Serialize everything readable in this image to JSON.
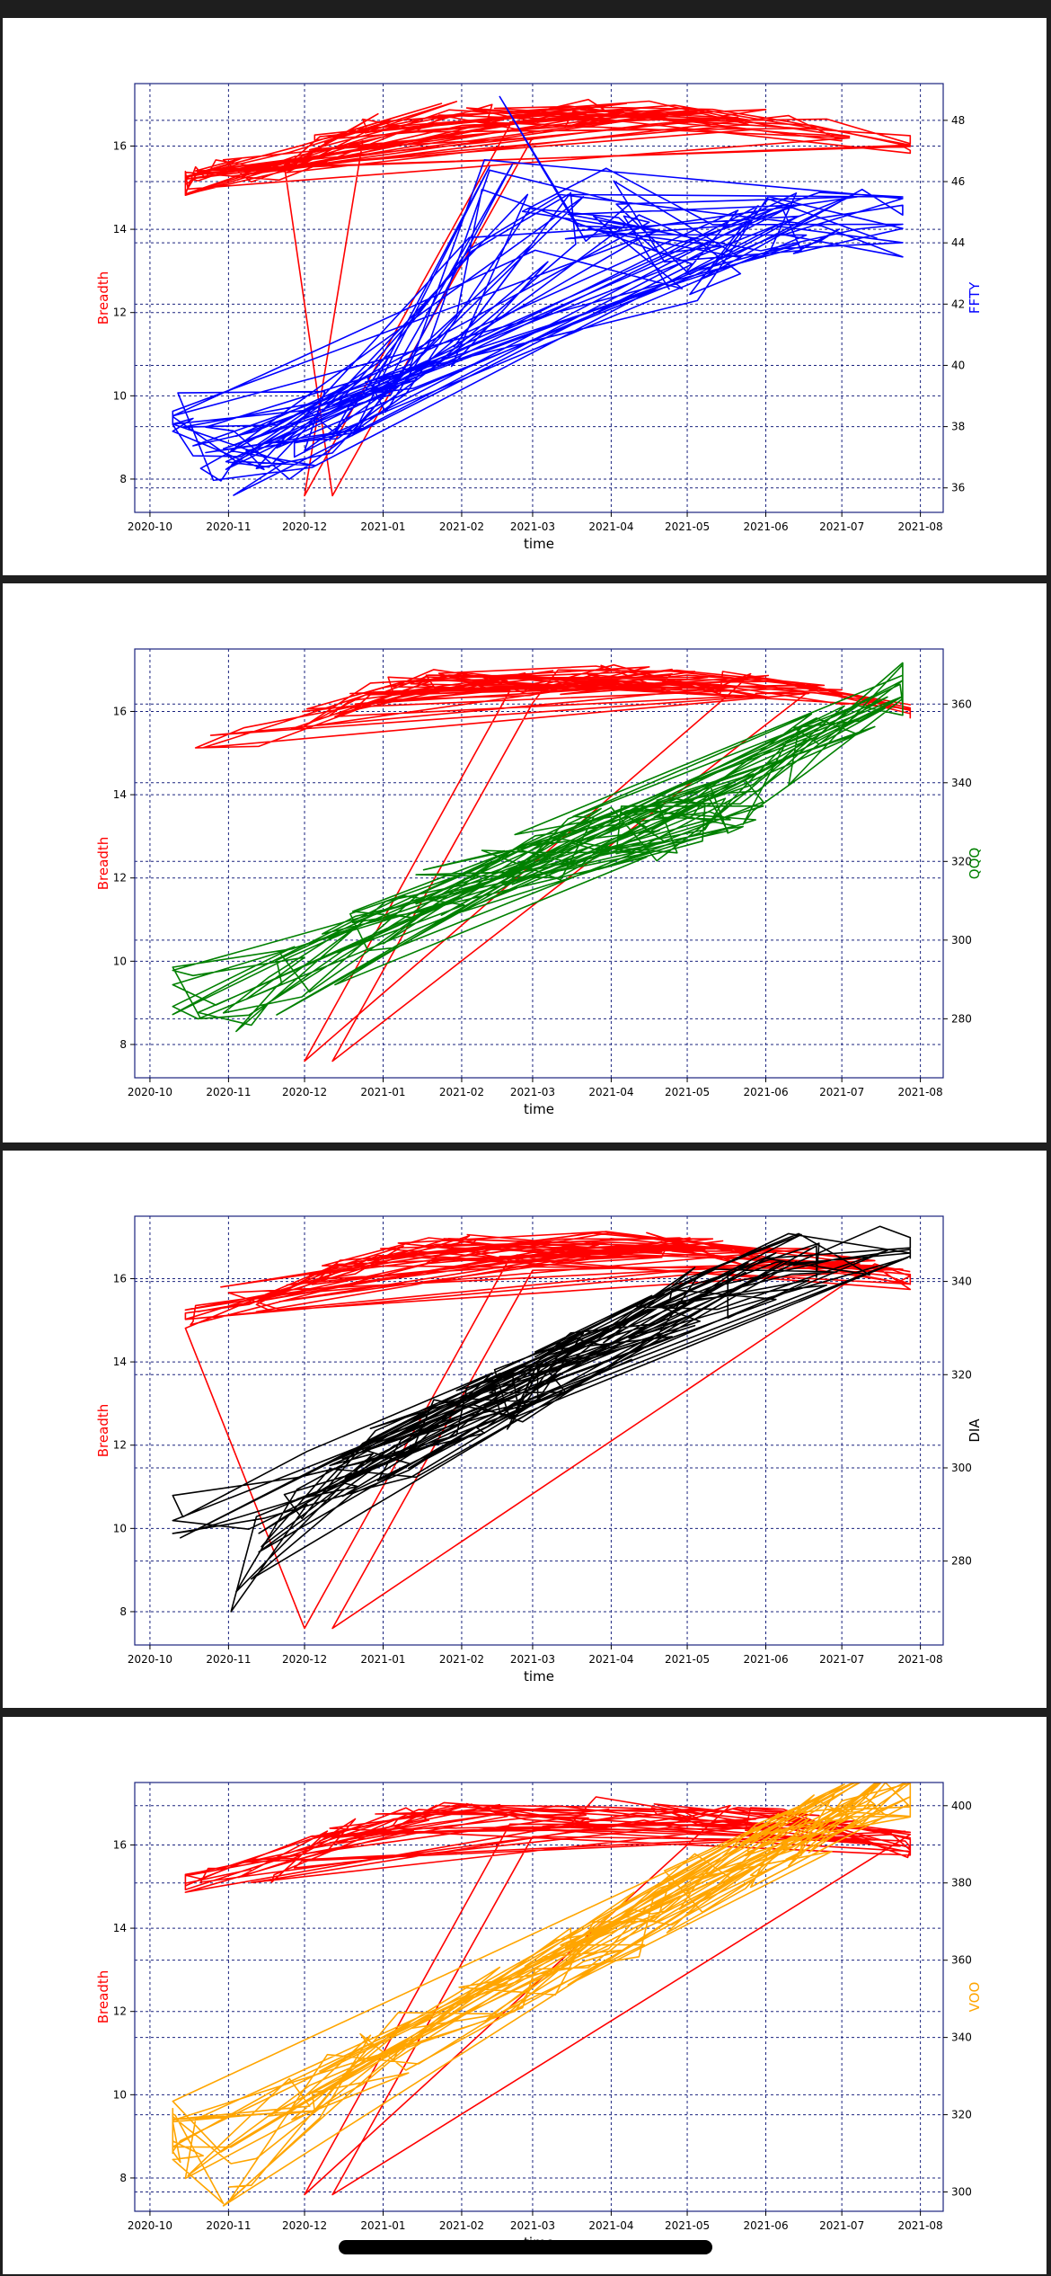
{
  "charts": [
    {
      "type": "line",
      "xlabel": "time",
      "left_axis": {
        "label": "Breadth",
        "color": "#ff0000",
        "ticks": [
          8,
          10,
          12,
          14,
          16
        ],
        "ylim": [
          7.2,
          17.5
        ]
      },
      "right_axis": {
        "label": "FFTY",
        "color": "#0000ff",
        "ticks": [
          36,
          38,
          40,
          42,
          44,
          46,
          48
        ],
        "ylim": [
          35.2,
          49.2
        ]
      },
      "x_ticks": [
        "2020-10",
        "2020-11",
        "2020-12",
        "2021-01",
        "2021-02",
        "2021-03",
        "2021-04",
        "2021-05",
        "2021-06",
        "2021-07",
        "2021-08"
      ]
    },
    {
      "type": "line",
      "xlabel": "time",
      "left_axis": {
        "label": "Breadth",
        "color": "#ff0000",
        "ticks": [
          8,
          10,
          12,
          14,
          16
        ],
        "ylim": [
          7.2,
          17.5
        ]
      },
      "right_axis": {
        "label": "QQQ",
        "color": "#008000",
        "ticks": [
          280,
          300,
          320,
          340,
          360
        ],
        "ylim": [
          265,
          374
        ]
      },
      "x_ticks": [
        "2020-10",
        "2020-11",
        "2020-12",
        "2021-01",
        "2021-02",
        "2021-03",
        "2021-04",
        "2021-05",
        "2021-06",
        "2021-07",
        "2021-08"
      ]
    },
    {
      "type": "line",
      "xlabel": "time",
      "left_axis": {
        "label": "Breadth",
        "color": "#ff0000",
        "ticks": [
          8,
          10,
          12,
          14,
          16
        ],
        "ylim": [
          7.2,
          17.5
        ]
      },
      "right_axis": {
        "label": "DIA",
        "color": "#000000",
        "ticks": [
          280,
          300,
          320,
          340
        ],
        "ylim": [
          262,
          354
        ]
      },
      "x_ticks": [
        "2020-10",
        "2020-11",
        "2020-12",
        "2021-01",
        "2021-02",
        "2021-03",
        "2021-04",
        "2021-05",
        "2021-06",
        "2021-07",
        "2021-08"
      ]
    },
    {
      "type": "line",
      "xlabel": "time",
      "left_axis": {
        "label": "Breadth",
        "color": "#ff0000",
        "ticks": [
          8,
          10,
          12,
          14,
          16
        ],
        "ylim": [
          7.2,
          17.5
        ]
      },
      "right_axis": {
        "label": "VOO",
        "color": "#ffa500",
        "ticks": [
          300,
          320,
          340,
          360,
          380,
          400
        ],
        "ylim": [
          295,
          406
        ]
      },
      "x_ticks": [
        "2020-10",
        "2020-11",
        "2020-12",
        "2021-01",
        "2021-02",
        "2021-03",
        "2021-04",
        "2021-05",
        "2021-06",
        "2021-07",
        "2021-08"
      ]
    }
  ],
  "chart_data": [
    {
      "type": "line",
      "xlabel": "time",
      "ylabel": "Breadth",
      "y2label": "FFTY",
      "xlim": [
        "2020-09-25",
        "2021-08-10"
      ],
      "series": [
        {
          "name": "Breadth",
          "axis": "left",
          "color": "#ff0000",
          "x": [
            "2020-10-15",
            "2020-11-01",
            "2020-11-15",
            "2020-12-01",
            "2020-12-15",
            "2021-01-01",
            "2021-02-01",
            "2021-03-01",
            "2021-04-01",
            "2021-05-01",
            "2021-06-01",
            "2021-07-01",
            "2021-07-28"
          ],
          "y": [
            15.1,
            15.6,
            15.2,
            15.9,
            16.2,
            16.5,
            16.8,
            16.6,
            16.9,
            16.7,
            16.6,
            16.4,
            16.0
          ]
        },
        {
          "name": "FFTY",
          "axis": "right",
          "color": "#0000ff",
          "x": [
            "2020-10-10",
            "2020-11-01",
            "2020-12-01",
            "2021-01-01",
            "2021-02-01",
            "2021-02-15",
            "2021-03-01",
            "2021-04-01",
            "2021-05-01",
            "2021-06-01",
            "2021-07-01",
            "2021-07-25"
          ],
          "y": [
            38.5,
            36.8,
            37.5,
            39.5,
            41.0,
            48.5,
            44.0,
            45.5,
            43.0,
            44.5,
            45.0,
            44.5
          ]
        }
      ]
    },
    {
      "type": "line",
      "xlabel": "time",
      "ylabel": "Breadth",
      "y2label": "QQQ",
      "xlim": [
        "2020-09-25",
        "2021-08-10"
      ],
      "series": [
        {
          "name": "Breadth",
          "axis": "left",
          "color": "#ff0000",
          "x": [
            "2020-10-15",
            "2020-11-01",
            "2020-11-15",
            "2020-12-01",
            "2020-12-15",
            "2021-01-01",
            "2021-02-01",
            "2021-03-01",
            "2021-04-01",
            "2021-05-01",
            "2021-06-01",
            "2021-07-01",
            "2021-07-28"
          ],
          "y": [
            15.1,
            15.6,
            15.2,
            15.9,
            16.2,
            16.5,
            16.8,
            16.6,
            16.9,
            16.7,
            16.6,
            16.4,
            16.0
          ]
        },
        {
          "name": "QQQ",
          "axis": "right",
          "color": "#008000",
          "x": [
            "2020-10-10",
            "2020-11-01",
            "2020-12-01",
            "2021-01-01",
            "2021-02-01",
            "2021-03-01",
            "2021-04-01",
            "2021-05-01",
            "2021-06-01",
            "2021-07-01",
            "2021-07-25"
          ],
          "y": [
            285,
            280,
            292,
            303,
            315,
            320,
            326,
            330,
            340,
            355,
            365
          ]
        }
      ]
    },
    {
      "type": "line",
      "xlabel": "time",
      "ylabel": "Breadth",
      "y2label": "DIA",
      "xlim": [
        "2020-09-25",
        "2021-08-10"
      ],
      "series": [
        {
          "name": "Breadth",
          "axis": "left",
          "color": "#ff0000",
          "x": [
            "2020-10-15",
            "2020-11-01",
            "2020-11-15",
            "2020-12-01",
            "2020-12-15",
            "2021-01-01",
            "2021-02-01",
            "2021-03-01",
            "2021-04-01",
            "2021-05-01",
            "2021-06-01",
            "2021-07-01",
            "2021-07-28"
          ],
          "y": [
            15.1,
            15.6,
            15.2,
            15.9,
            16.2,
            16.5,
            16.8,
            16.6,
            16.9,
            16.7,
            16.6,
            16.4,
            16.0
          ]
        },
        {
          "name": "DIA",
          "axis": "right",
          "color": "#000000",
          "x": [
            "2020-10-10",
            "2020-11-01",
            "2020-12-01",
            "2021-01-01",
            "2021-02-01",
            "2021-03-01",
            "2021-04-01",
            "2021-05-01",
            "2021-06-01",
            "2021-07-01",
            "2021-07-28"
          ],
          "y": [
            288,
            275,
            296,
            302,
            310,
            318,
            328,
            336,
            342,
            345,
            348
          ]
        }
      ]
    },
    {
      "type": "line",
      "xlabel": "time",
      "ylabel": "Breadth",
      "y2label": "VOO",
      "xlim": [
        "2020-09-25",
        "2021-08-10"
      ],
      "series": [
        {
          "name": "Breadth",
          "axis": "left",
          "color": "#ff0000",
          "x": [
            "2020-10-15",
            "2020-11-01",
            "2020-11-15",
            "2020-12-01",
            "2020-12-15",
            "2021-01-01",
            "2021-02-01",
            "2021-03-01",
            "2021-04-01",
            "2021-05-01",
            "2021-06-01",
            "2021-07-01",
            "2021-07-28"
          ],
          "y": [
            15.1,
            15.6,
            15.2,
            15.9,
            16.2,
            16.5,
            16.8,
            16.6,
            16.9,
            16.7,
            16.6,
            16.4,
            16.0
          ]
        },
        {
          "name": "VOO",
          "axis": "right",
          "color": "#ffa500",
          "x": [
            "2020-10-10",
            "2020-11-01",
            "2020-12-01",
            "2021-01-01",
            "2021-02-01",
            "2021-03-01",
            "2021-04-01",
            "2021-05-01",
            "2021-06-01",
            "2021-07-01",
            "2021-07-28"
          ],
          "y": [
            315,
            303,
            325,
            336,
            345,
            356,
            365,
            378,
            388,
            398,
            405
          ]
        }
      ]
    }
  ]
}
